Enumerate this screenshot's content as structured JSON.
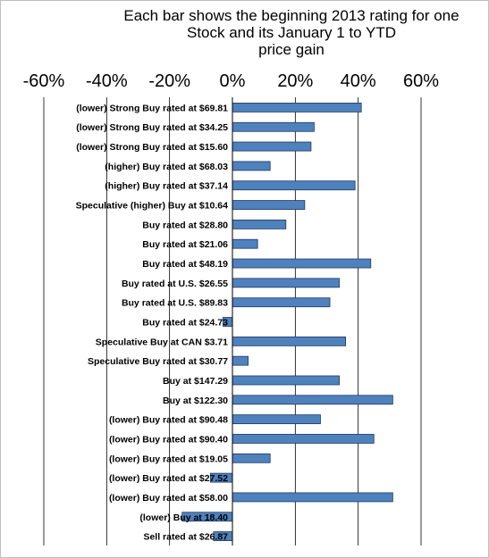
{
  "chart_data": {
    "type": "bar",
    "orientation": "horizontal",
    "title_lines": [
      "Each bar shows the beginning 2013 rating for one",
      "Stock and its January 1 to YTD",
      "price gain"
    ],
    "xlabel": "",
    "ylabel": "",
    "x_tick_labels": [
      "-60%",
      "-40%",
      "-20%",
      "0%",
      "20%",
      "40%",
      "60%"
    ],
    "x_ticks": [
      -60,
      -40,
      -20,
      0,
      20,
      40,
      60
    ],
    "xlim": [
      -60,
      60
    ],
    "grid": "vertical",
    "categories": [
      "(lower) Strong Buy rated at $69.81",
      "(lower) Strong Buy rated at $34.25",
      "(lower) Strong Buy rated at $15.60",
      "(higher) Buy rated at $68.03",
      "(higher) Buy rated at $37.14",
      "Speculative (higher) Buy at $10.64",
      "Buy rated at $28.80",
      "Buy rated at $21.06",
      "Buy rated at $48.19",
      "Buy rated at U.S. $26.55",
      "Buy rated at U.S.  $89.83",
      "Buy rated at $24.73",
      "Speculative Buy at CAN $3.71",
      "Speculative Buy rated at $30.77",
      "Buy at $147.29",
      "Buy at $122.30",
      "(lower) Buy rated at $90.48",
      "(lower) Buy rated at $90.40",
      "(lower) Buy rated at $19.05",
      "(lower) Buy rated at $27.52",
      "(lower) Buy rated at $58.00",
      "(lower) Buy at 18.40",
      "Sell rated at $26.87"
    ],
    "values": [
      41,
      26,
      25,
      12,
      39,
      23,
      17,
      8,
      44,
      34,
      31,
      -3,
      36,
      5,
      34,
      51,
      28,
      45,
      12,
      -7,
      51,
      -16,
      -6
    ],
    "bar_color": "#4f81bd"
  }
}
